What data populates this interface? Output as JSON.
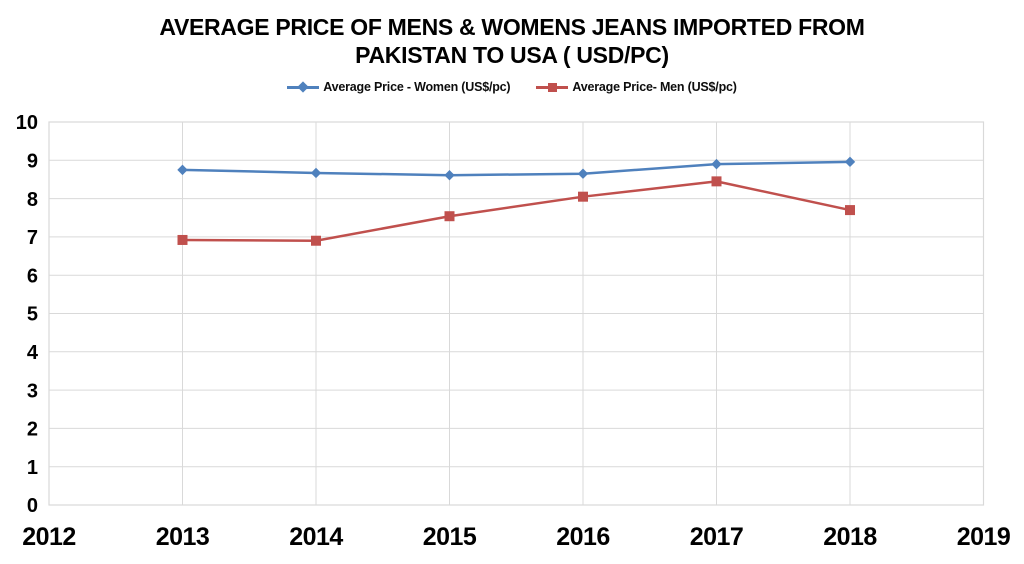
{
  "header": {
    "title_line1": "AVERAGE PRICE OF MENS & WOMENS JEANS IMPORTED FROM",
    "title_line2": "PAKISTAN TO USA ( USD/PC)"
  },
  "colors": {
    "women_series": "#4F81BD",
    "men_series": "#C0504D",
    "gridline": "#D9D9D9",
    "plot_border": "#D9D9D9",
    "text": "#000000"
  },
  "chart_data": {
    "type": "line",
    "title": "AVERAGE PRICE OF MENS & WOMENS JEANS IMPORTED FROM PAKISTAN TO USA ( USD/PC)",
    "x": [
      2013,
      2014,
      2015,
      2016,
      2017,
      2018
    ],
    "series": [
      {
        "name": "Average Price - Women (US$/pc)",
        "color": "#4F81BD",
        "marker": "diamond",
        "values": [
          8.75,
          8.67,
          8.61,
          8.65,
          8.9,
          8.96
        ]
      },
      {
        "name": "Average Price- Men (US$/pc)",
        "color": "#C0504D",
        "marker": "square",
        "values": [
          6.92,
          6.9,
          7.54,
          8.05,
          8.45,
          7.7
        ]
      }
    ],
    "xlabel": "",
    "ylabel": "",
    "xlim": [
      2012,
      2019
    ],
    "ylim": [
      0,
      10
    ],
    "x_ticks": [
      2012,
      2013,
      2014,
      2015,
      2016,
      2017,
      2018,
      2019
    ],
    "y_ticks": [
      0,
      1,
      2,
      3,
      4,
      5,
      6,
      7,
      8,
      9,
      10
    ],
    "grid": true,
    "legend_position": "top-center"
  }
}
